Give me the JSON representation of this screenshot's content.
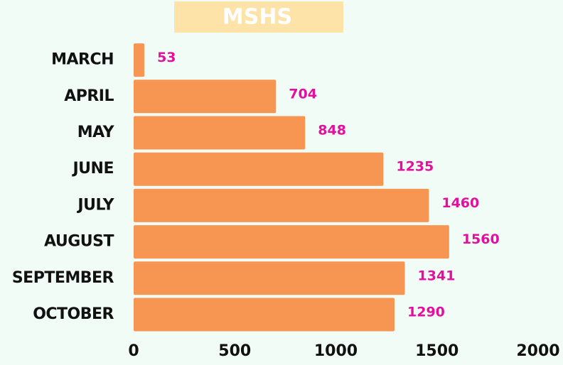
{
  "chart_data": {
    "type": "bar",
    "orientation": "horizontal",
    "badge": "MSHS",
    "categories": [
      "MARCH",
      "APRIL",
      "MAY",
      "JUNE",
      "JULY",
      "AUGUST",
      "SEPTEMBER",
      "OCTOBER"
    ],
    "values": [
      53,
      704,
      848,
      1235,
      1460,
      1560,
      1341,
      1290
    ],
    "color": "#f79552",
    "label_color": "#e3109f",
    "xlim": [
      0,
      2000
    ],
    "xticks": [
      0,
      500,
      1000,
      1500,
      2000
    ],
    "grid": false
  }
}
